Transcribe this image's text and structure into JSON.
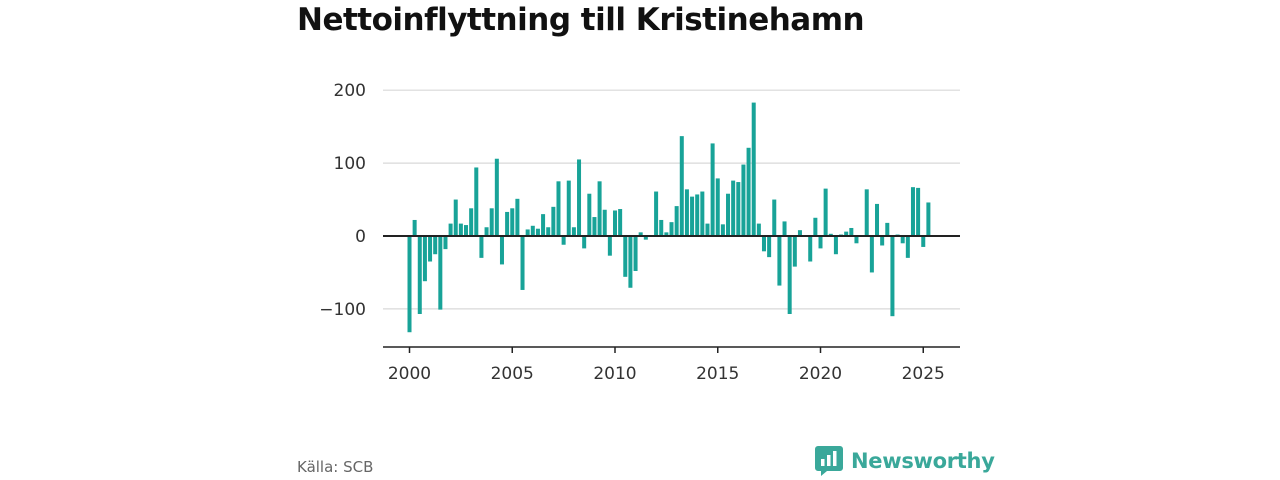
{
  "chart_data": {
    "type": "bar",
    "title": "Nettoinflyttning till Kristinehamn",
    "xlabel": "",
    "ylabel": "",
    "ylim": [
      -150,
      200
    ],
    "xlim": [
      1999.5,
      2026.3
    ],
    "y_ticks": [
      200,
      100,
      0,
      -100
    ],
    "y_tick_labels": [
      "200",
      "100",
      "0",
      "−100"
    ],
    "x_ticks": [
      2000,
      2005,
      2010,
      2015,
      2020,
      2025
    ],
    "x_tick_labels": [
      "2000",
      "2005",
      "2010",
      "2015",
      "2020",
      "2025"
    ],
    "grid": true,
    "legend": "none",
    "bar_color": "#18a398",
    "x": [
      "2000Q1",
      "2000Q2",
      "2000Q3",
      "2000Q4",
      "2001Q1",
      "2001Q2",
      "2001Q3",
      "2001Q4",
      "2002Q1",
      "2002Q2",
      "2002Q3",
      "2002Q4",
      "2003Q1",
      "2003Q2",
      "2003Q3",
      "2003Q4",
      "2004Q1",
      "2004Q2",
      "2004Q3",
      "2004Q4",
      "2005Q1",
      "2005Q2",
      "2005Q3",
      "2005Q4",
      "2006Q1",
      "2006Q2",
      "2006Q3",
      "2006Q4",
      "2007Q1",
      "2007Q2",
      "2007Q3",
      "2007Q4",
      "2008Q1",
      "2008Q2",
      "2008Q3",
      "2008Q4",
      "2009Q1",
      "2009Q2",
      "2009Q3",
      "2009Q4",
      "2010Q1",
      "2010Q2",
      "2010Q3",
      "2010Q4",
      "2011Q1",
      "2011Q2",
      "2011Q3",
      "2011Q4",
      "2012Q1",
      "2012Q2",
      "2012Q3",
      "2012Q4",
      "2013Q1",
      "2013Q2",
      "2013Q3",
      "2013Q4",
      "2014Q1",
      "2014Q2",
      "2014Q3",
      "2014Q4",
      "2015Q1",
      "2015Q2",
      "2015Q3",
      "2015Q4",
      "2016Q1",
      "2016Q2",
      "2016Q3",
      "2016Q4",
      "2017Q1",
      "2017Q2",
      "2017Q3",
      "2017Q4",
      "2018Q1",
      "2018Q2",
      "2018Q3",
      "2018Q4",
      "2019Q1",
      "2019Q2",
      "2019Q3",
      "2019Q4",
      "2020Q1",
      "2020Q2",
      "2020Q3",
      "2020Q4",
      "2021Q1",
      "2021Q2",
      "2021Q3",
      "2021Q4",
      "2022Q1",
      "2022Q2",
      "2022Q3",
      "2022Q4",
      "2023Q1",
      "2023Q2",
      "2023Q3",
      "2023Q4",
      "2024Q1",
      "2024Q2",
      "2024Q3",
      "2024Q4",
      "2025Q1",
      "2025Q2"
    ],
    "values": [
      -132,
      22,
      -107,
      -62,
      -35,
      -25,
      -101,
      -18,
      17,
      50,
      17,
      15,
      38,
      94,
      -30,
      12,
      38,
      106,
      -39,
      33,
      38,
      51,
      -74,
      9,
      14,
      10,
      30,
      12,
      40,
      75,
      -12,
      76,
      12,
      105,
      -17,
      58,
      26,
      75,
      36,
      -27,
      35,
      37,
      -56,
      -71,
      -48,
      5,
      -5,
      0,
      61,
      22,
      5,
      19,
      41,
      137,
      64,
      54,
      57,
      61,
      17,
      127,
      79,
      16,
      58,
      76,
      74,
      98,
      121,
      183,
      17,
      -21,
      -29,
      50,
      -68,
      20,
      -107,
      -42,
      8,
      0,
      -35,
      25,
      -17,
      65,
      3,
      -25,
      2,
      6,
      11,
      -10,
      0,
      64,
      -50,
      44,
      -13,
      18,
      -110,
      2,
      -10,
      -30,
      67,
      66,
      -15,
      46
    ]
  },
  "footer": {
    "source": "Källa: SCB",
    "brand": "Newsworthy",
    "brand_icon": "newsworthy-logo-icon",
    "brand_color": "#3aa89a"
  }
}
